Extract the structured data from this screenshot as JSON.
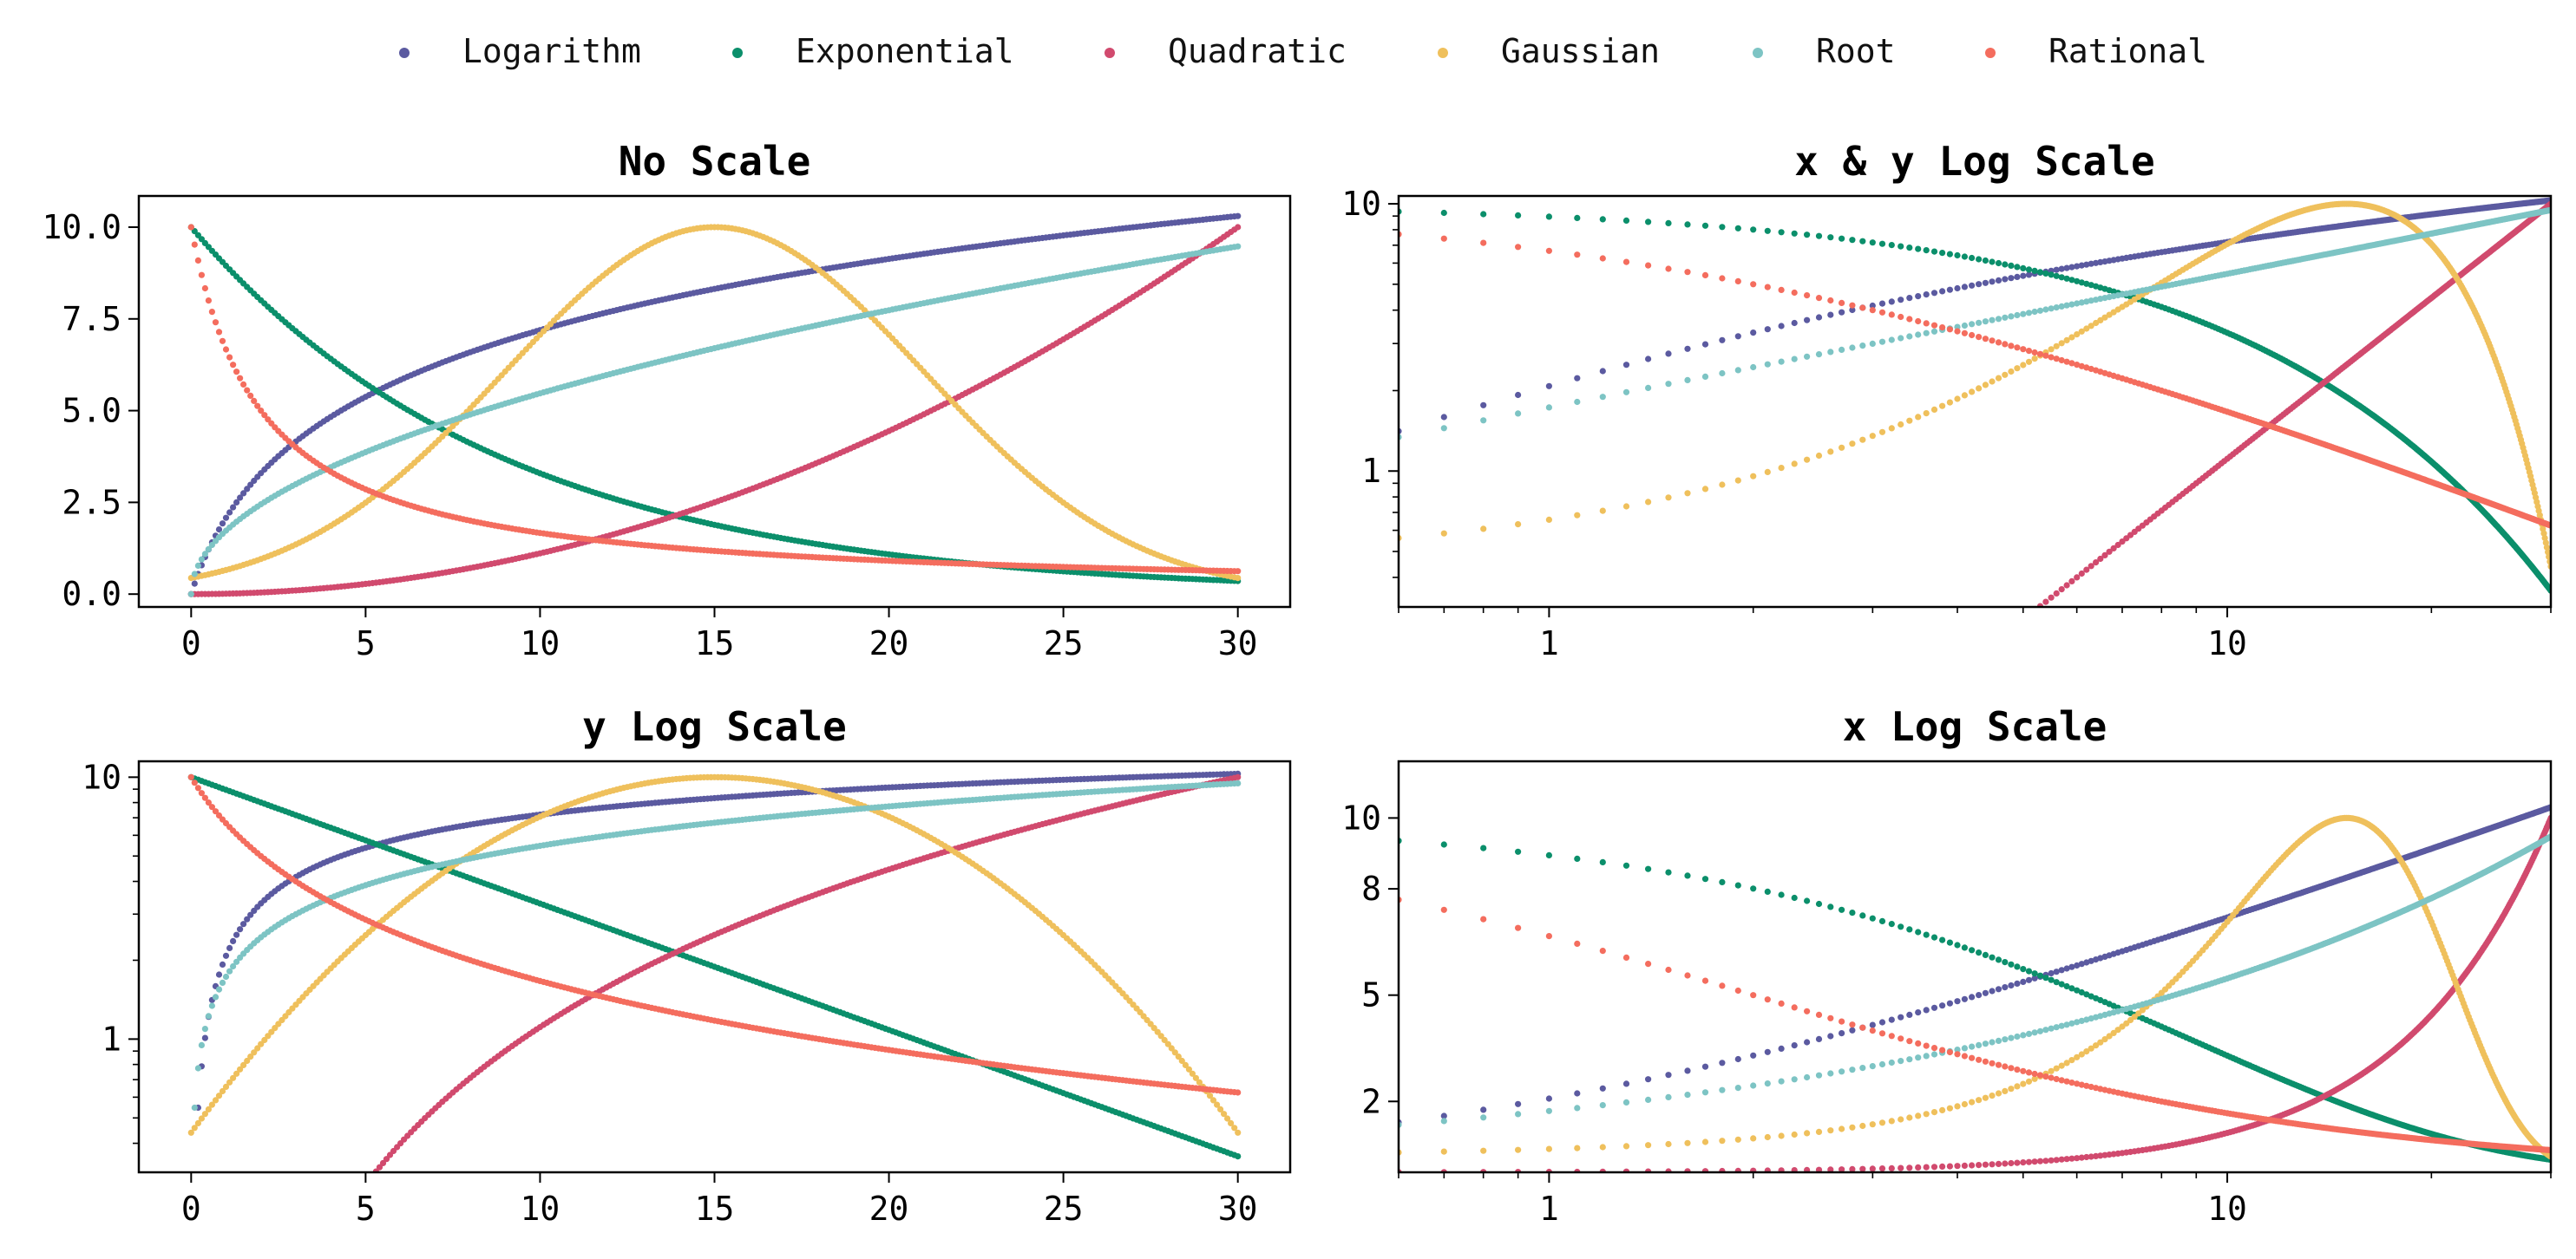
{
  "legend": [
    {
      "name": "Logarithm",
      "color": "#5b5aa0"
    },
    {
      "name": "Exponential",
      "color": "#0b8f6b"
    },
    {
      "name": "Quadratic",
      "color": "#d14a6e"
    },
    {
      "name": "Gaussian",
      "color": "#efc05c"
    },
    {
      "name": "Root",
      "color": "#7dc4c4"
    },
    {
      "name": "Rational",
      "color": "#f46d5e"
    }
  ],
  "chart_data": [
    {
      "type": "scatter",
      "title": "No Scale",
      "xscale": "linear",
      "yscale": "linear",
      "xlim": [
        -1.5,
        31.5
      ],
      "ylim": [
        -0.35,
        10.85
      ],
      "xticks": [
        0,
        5,
        10,
        15,
        20,
        25,
        30
      ],
      "xtick_labels": [
        "0",
        "5",
        "10",
        "15",
        "20",
        "25",
        "30"
      ],
      "yticks": [
        0,
        2.5,
        5,
        7.5,
        10
      ],
      "ytick_labels": [
        "0.0",
        "2.5",
        "5.0",
        "7.5",
        "10.0"
      ],
      "x_range": [
        0,
        30
      ],
      "series": [
        {
          "name": "Logarithm",
          "formula": "3*ln(x+1)",
          "color": "#5b5aa0"
        },
        {
          "name": "Exponential",
          "formula": "10*exp(-x/9)",
          "color": "#0b8f6b"
        },
        {
          "name": "Quadratic",
          "formula": "x^2/90",
          "color": "#d14a6e"
        },
        {
          "name": "Gaussian",
          "formula": "10*exp(-(x-15)^2/72)",
          "color": "#efc05c"
        },
        {
          "name": "Root",
          "formula": "1.73*sqrt(x)",
          "color": "#7dc4c4"
        },
        {
          "name": "Rational",
          "formula": "10/(1+x/2)",
          "color": "#f46d5e"
        }
      ]
    },
    {
      "type": "scatter",
      "title": "x & y Log Scale",
      "xscale": "log",
      "yscale": "log",
      "xlim": [
        0.6,
        30
      ],
      "ylim": [
        0.31,
        10.7
      ],
      "xticks": [
        1,
        10
      ],
      "xtick_labels": [
        "1",
        "10"
      ],
      "yticks": [
        1,
        10
      ],
      "ytick_labels": [
        "1",
        "10"
      ],
      "x_range": [
        0,
        30
      ],
      "series": [
        {
          "name": "Logarithm",
          "formula": "3*ln(x+1)",
          "color": "#5b5aa0"
        },
        {
          "name": "Exponential",
          "formula": "10*exp(-x/9)",
          "color": "#0b8f6b"
        },
        {
          "name": "Quadratic",
          "formula": "x^2/90",
          "color": "#d14a6e"
        },
        {
          "name": "Gaussian",
          "formula": "10*exp(-(x-15)^2/72)",
          "color": "#efc05c"
        },
        {
          "name": "Root",
          "formula": "1.73*sqrt(x)",
          "color": "#7dc4c4"
        },
        {
          "name": "Rational",
          "formula": "10/(1+x/2)",
          "color": "#f46d5e"
        }
      ]
    },
    {
      "type": "scatter",
      "title": "y Log Scale",
      "xscale": "linear",
      "yscale": "log",
      "xlim": [
        -1.5,
        31.5
      ],
      "ylim": [
        0.31,
        11.5
      ],
      "xticks": [
        0,
        5,
        10,
        15,
        20,
        25,
        30
      ],
      "xtick_labels": [
        "0",
        "5",
        "10",
        "15",
        "20",
        "25",
        "30"
      ],
      "yticks": [
        1,
        10
      ],
      "ytick_labels": [
        "1",
        "10"
      ],
      "x_range": [
        0,
        30
      ],
      "series": [
        {
          "name": "Logarithm",
          "formula": "3*ln(x+1)",
          "color": "#5b5aa0"
        },
        {
          "name": "Exponential",
          "formula": "10*exp(-x/9)",
          "color": "#0b8f6b"
        },
        {
          "name": "Quadratic",
          "formula": "x^2/90",
          "color": "#d14a6e"
        },
        {
          "name": "Gaussian",
          "formula": "10*exp(-(x-15)^2/72)",
          "color": "#efc05c"
        },
        {
          "name": "Root",
          "formula": "1.73*sqrt(x)",
          "color": "#7dc4c4"
        },
        {
          "name": "Rational",
          "formula": "10/(1+x/2)",
          "color": "#f46d5e"
        }
      ]
    },
    {
      "type": "scatter",
      "title": "x Log Scale",
      "xscale": "log",
      "yscale": "linear",
      "xlim": [
        0.6,
        30
      ],
      "ylim": [
        0,
        11.6
      ],
      "xticks": [
        1,
        10
      ],
      "xtick_labels": [
        "1",
        "10"
      ],
      "yticks": [
        2,
        5,
        8,
        10
      ],
      "ytick_labels": [
        "2",
        "5",
        "8",
        "10"
      ],
      "x_range": [
        0,
        30
      ],
      "series": [
        {
          "name": "Logarithm",
          "formula": "3*ln(x+1)",
          "color": "#5b5aa0"
        },
        {
          "name": "Exponential",
          "formula": "10*exp(-x/9)",
          "color": "#0b8f6b"
        },
        {
          "name": "Quadratic",
          "formula": "x^2/90",
          "color": "#d14a6e"
        },
        {
          "name": "Gaussian",
          "formula": "10*exp(-(x-15)^2/72)",
          "color": "#efc05c"
        },
        {
          "name": "Root",
          "formula": "1.73*sqrt(x)",
          "color": "#7dc4c4"
        },
        {
          "name": "Rational",
          "formula": "10/(1+x/2)",
          "color": "#f46d5e"
        }
      ]
    }
  ]
}
